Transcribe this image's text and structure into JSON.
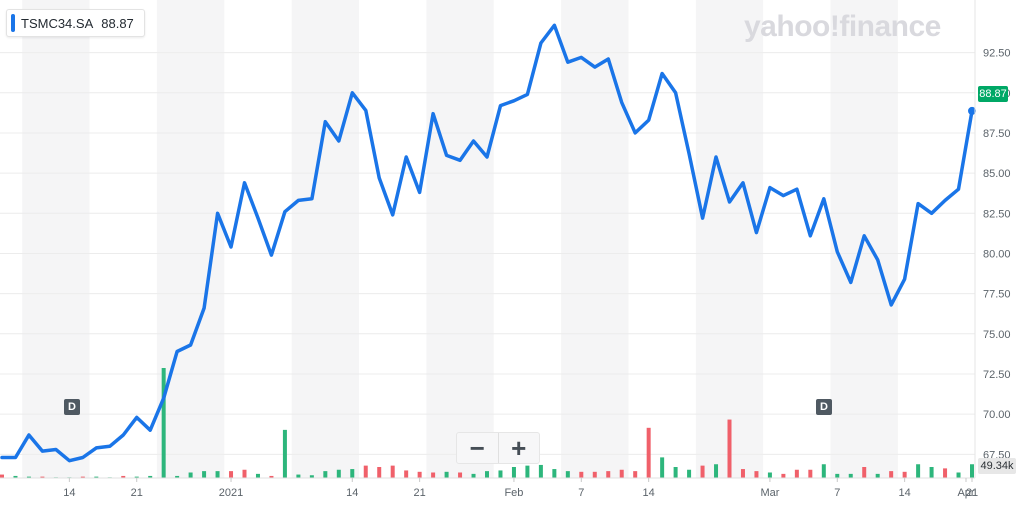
{
  "legend": {
    "symbol": "TSMC34.SA",
    "value": "88.87",
    "color": "#1a75e8"
  },
  "brand": "yahoo!finance",
  "zoom": {
    "minus": "−",
    "plus": "+"
  },
  "dividend_marker_label": "D",
  "last_price_label": "88.87",
  "last_volume_label": "49.34k",
  "colors": {
    "line": "#1a75e8",
    "up": "#2db67c",
    "down": "#f0606a",
    "price_tag": "#00a866"
  },
  "chart_data": {
    "type": "line",
    "title": "",
    "series": [
      {
        "name": "TSMC34.SA",
        "values": [
          67.3,
          67.3,
          68.7,
          67.7,
          67.8,
          67.1,
          67.3,
          67.9,
          68.0,
          68.7,
          69.8,
          69.0,
          71.0,
          73.9,
          74.3,
          76.6,
          82.5,
          80.4,
          84.4,
          82.2,
          79.9,
          82.6,
          83.3,
          83.4,
          88.2,
          87.0,
          90.0,
          88.9,
          84.7,
          82.4,
          86.0,
          83.8,
          88.7,
          86.1,
          85.8,
          87.0,
          86.0,
          89.2,
          89.5,
          89.9,
          93.1,
          94.2,
          91.9,
          92.2,
          91.6,
          92.1,
          89.4,
          87.5,
          88.3,
          91.2,
          90.0,
          86.2,
          82.2,
          86.0,
          83.2,
          84.4,
          81.3,
          84.1,
          83.6,
          84.0,
          81.1,
          83.4,
          80.1,
          78.2,
          81.1,
          79.6,
          76.8,
          78.4,
          83.1,
          82.5,
          83.3,
          84.0,
          88.87
        ]
      }
    ],
    "volume_series": [
      {
        "v": 0.5,
        "d": 1
      },
      {
        "v": 0.3,
        "d": 0
      },
      {
        "v": 0.2,
        "d": 0
      },
      {
        "v": 0.2,
        "d": 1
      },
      {
        "v": 0.1,
        "d": 0
      },
      {
        "v": 0.1,
        "d": 0
      },
      {
        "v": 0.2,
        "d": 1
      },
      {
        "v": 0.2,
        "d": 0
      },
      {
        "v": 0.1,
        "d": 0
      },
      {
        "v": 0.3,
        "d": 1
      },
      {
        "v": 0.2,
        "d": 0
      },
      {
        "v": 0.3,
        "d": 0
      },
      {
        "v": 16.0,
        "d": 0
      },
      {
        "v": 0.3,
        "d": 0
      },
      {
        "v": 0.8,
        "d": 0
      },
      {
        "v": 1.0,
        "d": 0
      },
      {
        "v": 1.0,
        "d": 0
      },
      {
        "v": 1.0,
        "d": 1
      },
      {
        "v": 1.2,
        "d": 1
      },
      {
        "v": 0.6,
        "d": 0
      },
      {
        "v": 0.3,
        "d": 1
      },
      {
        "v": 7.0,
        "d": 0
      },
      {
        "v": 0.5,
        "d": 0
      },
      {
        "v": 0.4,
        "d": 0
      },
      {
        "v": 1.0,
        "d": 0
      },
      {
        "v": 1.2,
        "d": 0
      },
      {
        "v": 1.3,
        "d": 0
      },
      {
        "v": 1.8,
        "d": 1
      },
      {
        "v": 1.6,
        "d": 1
      },
      {
        "v": 1.8,
        "d": 1
      },
      {
        "v": 1.1,
        "d": 1
      },
      {
        "v": 0.9,
        "d": 1
      },
      {
        "v": 0.8,
        "d": 1
      },
      {
        "v": 0.9,
        "d": 0
      },
      {
        "v": 0.8,
        "d": 1
      },
      {
        "v": 0.6,
        "d": 0
      },
      {
        "v": 1.0,
        "d": 0
      },
      {
        "v": 1.1,
        "d": 0
      },
      {
        "v": 1.6,
        "d": 0
      },
      {
        "v": 1.8,
        "d": 0
      },
      {
        "v": 1.9,
        "d": 0
      },
      {
        "v": 1.3,
        "d": 0
      },
      {
        "v": 1.0,
        "d": 0
      },
      {
        "v": 0.9,
        "d": 1
      },
      {
        "v": 0.9,
        "d": 1
      },
      {
        "v": 1.0,
        "d": 1
      },
      {
        "v": 1.2,
        "d": 1
      },
      {
        "v": 1.0,
        "d": 1
      },
      {
        "v": 7.3,
        "d": 1
      },
      {
        "v": 3.0,
        "d": 0
      },
      {
        "v": 1.6,
        "d": 0
      },
      {
        "v": 1.2,
        "d": 0
      },
      {
        "v": 1.8,
        "d": 1
      },
      {
        "v": 2.0,
        "d": 0
      },
      {
        "v": 8.5,
        "d": 1
      },
      {
        "v": 1.3,
        "d": 1
      },
      {
        "v": 1.0,
        "d": 1
      },
      {
        "v": 0.8,
        "d": 0
      },
      {
        "v": 0.6,
        "d": 1
      },
      {
        "v": 1.2,
        "d": 1
      },
      {
        "v": 1.2,
        "d": 1
      },
      {
        "v": 2.0,
        "d": 0
      },
      {
        "v": 0.6,
        "d": 0
      },
      {
        "v": 0.6,
        "d": 0
      },
      {
        "v": 1.6,
        "d": 1
      },
      {
        "v": 0.6,
        "d": 0
      },
      {
        "v": 1.0,
        "d": 1
      },
      {
        "v": 0.9,
        "d": 1
      },
      {
        "v": 2.0,
        "d": 0
      },
      {
        "v": 1.6,
        "d": 0
      },
      {
        "v": 1.4,
        "d": 1
      },
      {
        "v": 0.8,
        "d": 0
      },
      {
        "v": 2.0,
        "d": 0
      }
    ],
    "x_tick_labels": [
      "14",
      "21",
      "2021",
      "14",
      "21",
      "Feb",
      "7",
      "14",
      "Mar",
      "7",
      "14",
      "21",
      "Apr"
    ],
    "y_tick_labels": [
      "92.50",
      "90.00",
      "87.50",
      "85.00",
      "82.50",
      "80.00",
      "77.50",
      "75.00",
      "72.50",
      "70.00",
      "67.50"
    ],
    "ylim": [
      66.3,
      95.3
    ],
    "dividend_markers": 2,
    "grid": true
  }
}
